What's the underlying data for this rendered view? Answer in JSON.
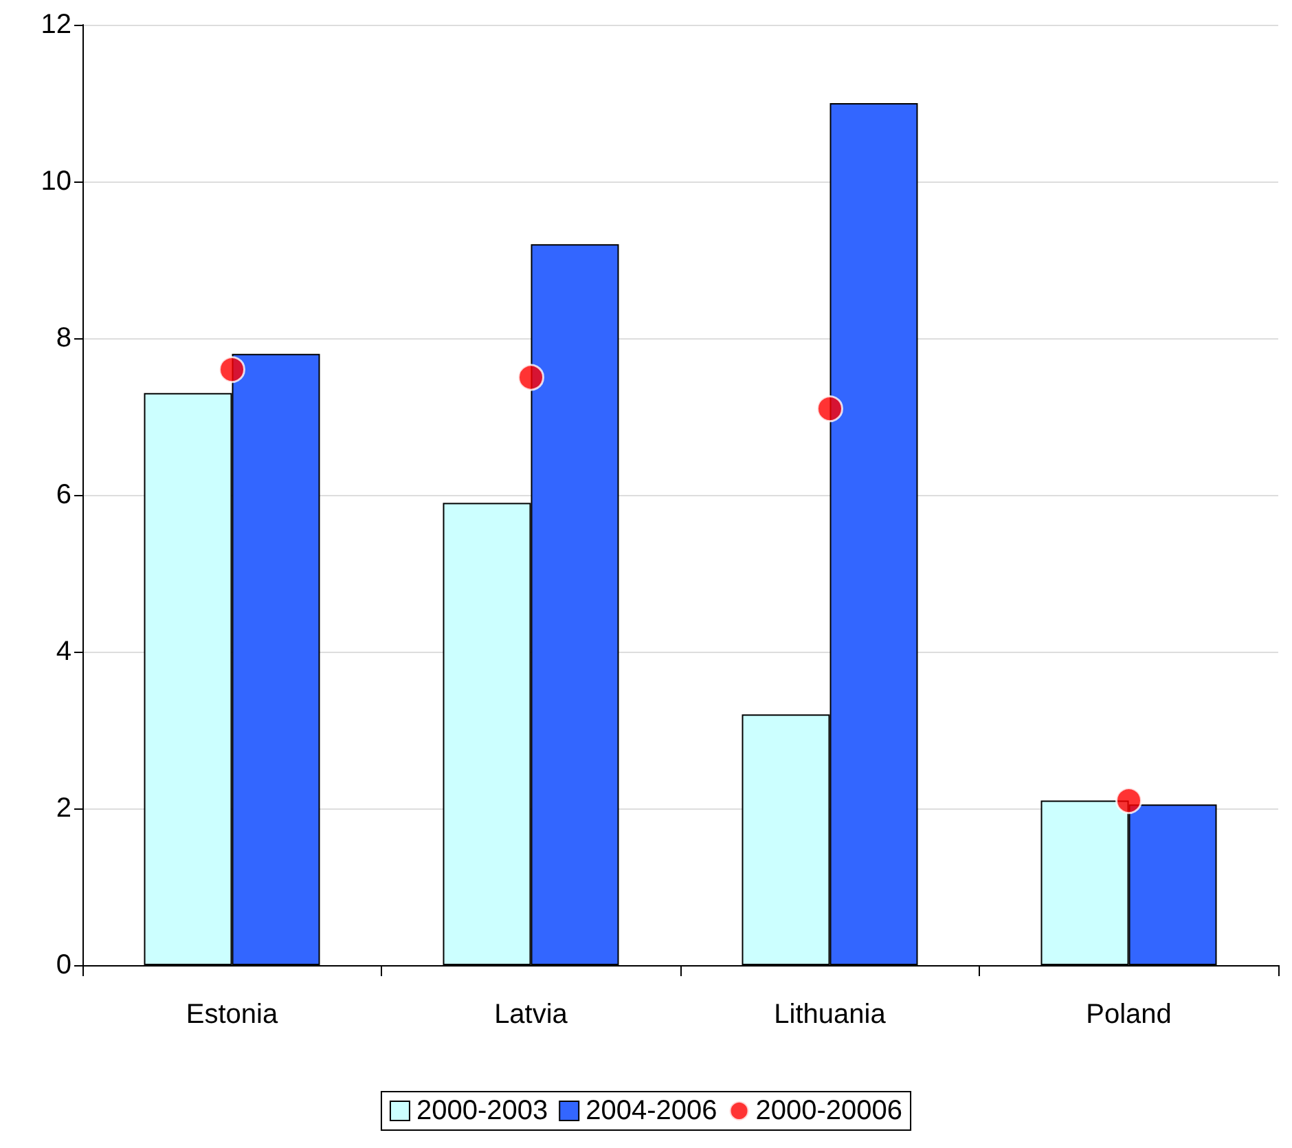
{
  "chart_data": {
    "type": "bar",
    "categories": [
      "Estonia",
      "Latvia",
      "Lithuania",
      "Poland"
    ],
    "series": [
      {
        "name": "2000-2003",
        "color": "#ccffff",
        "values": [
          7.3,
          5.9,
          3.2,
          2.1
        ]
      },
      {
        "name": "2004-2006",
        "color": "#3366ff",
        "values": [
          7.8,
          9.2,
          11,
          2.05
        ]
      },
      {
        "name": "2000-20006",
        "type": "scatter",
        "color": "#ff0000",
        "x": [
          "Estonia",
          "Latvia",
          "Lithuania",
          "Poland"
        ],
        "values": [
          7.6,
          7.5,
          7.1,
          2.1
        ]
      }
    ],
    "ylim": [
      0,
      12
    ],
    "yticks": [
      0,
      2,
      4,
      6,
      8,
      10,
      12
    ],
    "grid": "y",
    "legend": "bottom",
    "marker": "circle"
  }
}
